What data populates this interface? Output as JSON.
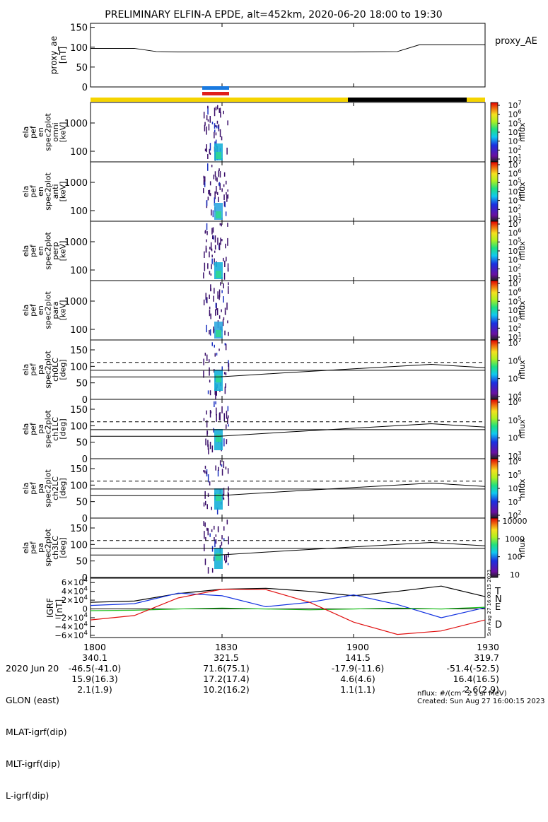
{
  "title": "PRELIMINARY ELFIN-A EPDE, alt=452km, 2020-06-20 18:00 to 19:30",
  "colors": {
    "day": "#f5d400",
    "night": "#000000",
    "science_blue": "#1a7ae0",
    "science_red": "#e0201a"
  },
  "chart_data": [
    {
      "type": "line",
      "ylabel": "proxy_ae [nT]",
      "legend": "proxy_AE",
      "ylim": [
        0,
        160
      ],
      "yticks": [
        "150",
        "100",
        "50",
        "0"
      ],
      "x": [
        0,
        5,
        10,
        15,
        20,
        30,
        40,
        50,
        60,
        70,
        75,
        80,
        90
      ],
      "values": [
        97,
        97,
        97,
        89,
        88,
        88,
        88,
        88,
        88,
        89,
        106,
        106,
        106
      ]
    },
    {
      "type": "heatmap",
      "ylabel": [
        "ela",
        "pef",
        "en",
        "spec2plot",
        "omni",
        "[keV]"
      ],
      "yticks": [
        "1000",
        "100"
      ],
      "colorbar": {
        "label": "nflux",
        "ticks": [
          "10^7",
          "10^6",
          "10^5",
          "10^4",
          "10^3",
          "10^2",
          "10^1"
        ]
      }
    },
    {
      "type": "heatmap",
      "ylabel": [
        "ela",
        "pef",
        "en",
        "spec2plot",
        "anti",
        "[keV]"
      ],
      "yticks": [
        "1000",
        "100"
      ],
      "colorbar": {
        "label": "nflux",
        "ticks": [
          "10^7",
          "10^6",
          "10^5",
          "10^4",
          "10^3",
          "10^2",
          "10^1"
        ]
      }
    },
    {
      "type": "heatmap",
      "ylabel": [
        "ela",
        "pef",
        "en",
        "spec2plot",
        "perp",
        "[keV]"
      ],
      "yticks": [
        "1000",
        "100"
      ],
      "colorbar": {
        "label": "nflux",
        "ticks": [
          "10^7",
          "10^6",
          "10^5",
          "10^4",
          "10^3",
          "10^2",
          "10^1"
        ]
      }
    },
    {
      "type": "heatmap",
      "ylabel": [
        "ela",
        "pef",
        "en",
        "spec2plot",
        "para",
        "[keV]"
      ],
      "yticks": [
        "1000",
        "100"
      ],
      "colorbar": {
        "label": "nflux",
        "ticks": [
          "10^7",
          "10^6",
          "10^5",
          "10^4",
          "10^3",
          "10^2",
          "10^1"
        ]
      }
    },
    {
      "type": "heatmap",
      "ylabel": [
        "ela",
        "pef",
        "pa",
        "spec2plot",
        "ch0LC",
        "[deg]"
      ],
      "yticks": [
        "150",
        "100",
        "50",
        "0"
      ],
      "colorbar": {
        "label": "nflux",
        "ticks": [
          "10^7",
          "10^6",
          "10^5",
          "10^4"
        ]
      }
    },
    {
      "type": "heatmap",
      "ylabel": [
        "ela",
        "pef",
        "pa",
        "spec2plot",
        "ch1LC",
        "[deg]"
      ],
      "yticks": [
        "150",
        "100",
        "50",
        "0"
      ],
      "colorbar": {
        "label": "nflux",
        "ticks": [
          "10^6",
          "10^5",
          "10^4",
          "10^3"
        ]
      }
    },
    {
      "type": "heatmap",
      "ylabel": [
        "ela",
        "pef",
        "pa",
        "spec2plot",
        "ch2LC",
        "[deg]"
      ],
      "yticks": [
        "150",
        "100",
        "50",
        "0"
      ],
      "colorbar": {
        "label": "nflux",
        "ticks": [
          "10^6",
          "10^5",
          "10^4",
          "10^3",
          "10^2"
        ]
      }
    },
    {
      "type": "heatmap",
      "ylabel": [
        "ela",
        "pef",
        "pa",
        "spec2plot",
        "ch3LC",
        "[deg]"
      ],
      "yticks": [
        "150",
        "100",
        "50",
        "0"
      ],
      "colorbar": {
        "label": "nflux",
        "ticks": [
          "10000",
          "1000",
          "100",
          "10"
        ]
      }
    },
    {
      "type": "line",
      "ylabel": "IGRF [nT]",
      "ylim": [
        -65000,
        70000
      ],
      "yticks": [
        "6×10^4",
        "4×10^4",
        "2×10^4",
        "0",
        "−2×10^4",
        "−4×10^4",
        "−6×10^4"
      ],
      "x": [
        0,
        10,
        20,
        30,
        40,
        50,
        60,
        70,
        80,
        90
      ],
      "series": [
        {
          "name": "T",
          "color": "#000000",
          "values": [
            15000,
            18000,
            35000,
            45000,
            47000,
            40000,
            30000,
            40000,
            52000,
            28000
          ]
        },
        {
          "name": "N",
          "color": "#1030e0",
          "values": [
            8000,
            12000,
            36000,
            30000,
            5000,
            15000,
            32000,
            10000,
            -20000,
            3000
          ]
        },
        {
          "name": "E",
          "color": "#20c020",
          "values": [
            -4000,
            -3000,
            0,
            2000,
            0,
            -2000,
            0,
            2000,
            0,
            4000
          ]
        },
        {
          "name": "D",
          "color": "#e01010",
          "values": [
            -25000,
            -15000,
            25000,
            45000,
            44000,
            15000,
            -30000,
            -58000,
            -50000,
            -25000
          ]
        }
      ]
    }
  ],
  "time_ticks": [
    "1800",
    "1830",
    "1900",
    "1930"
  ],
  "footer": {
    "rows": [
      {
        "label": "2020 Jun 20",
        "values": [
          "1800",
          "1830",
          "1900",
          "1930"
        ]
      },
      {
        "label": "GLON (east)",
        "values": [
          "340.1",
          "321.5",
          "141.5",
          "319.7"
        ]
      },
      {
        "label": "MLAT-igrf(dip)",
        "values": [
          "-46.5(-41.0)",
          "71.6(75.1)",
          "-17.9(-11.6)",
          "-51.4(-52.5)"
        ]
      },
      {
        "label": "MLT-igrf(dip)",
        "values": [
          "15.9(16.3)",
          "17.2(17.4)",
          "4.6(4.6)",
          "16.4(16.5)"
        ]
      },
      {
        "label": "L-igrf(dip)",
        "values": [
          "2.1(1.9)",
          "10.2(16.2)",
          "1.1(1.1)",
          "2.6(2.9)"
        ]
      }
    ],
    "units_note": "nflux: #/(cm^2 s sr MeV)",
    "created": "Created: Sun Aug 27 16:00:15 2023",
    "side_stamp": "Sun Aug 27 16:00:15 2023"
  }
}
